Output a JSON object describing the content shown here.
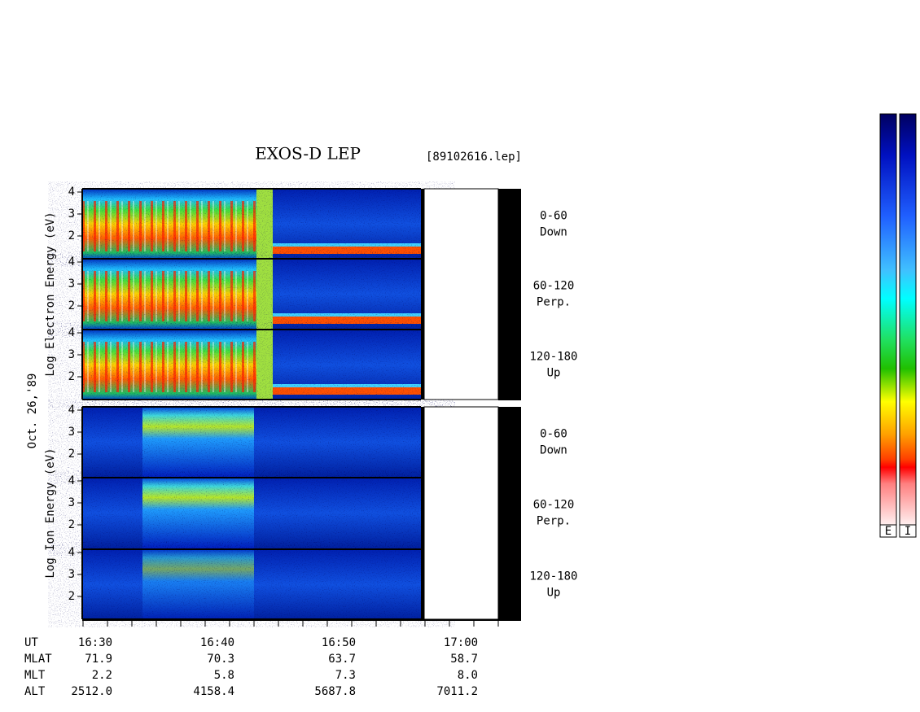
{
  "header": {
    "title": "EXOS-D LEP",
    "file": "[89102616.lep]",
    "date": "Oct. 26,'89"
  },
  "species": [
    {
      "axis_label": "Log  Electron  Energy  (eV)",
      "panels": [
        {
          "angle": "0-60",
          "direction": "Down",
          "yticks": [
            4,
            3,
            2
          ]
        },
        {
          "angle": "60-120",
          "direction": "Perp.",
          "yticks": [
            4,
            3,
            2
          ]
        },
        {
          "angle": "120-180",
          "direction": "Up",
          "yticks": [
            4,
            3,
            2
          ]
        }
      ]
    },
    {
      "axis_label": "Log  Ion  Energy  (eV)",
      "panels": [
        {
          "angle": "0-60",
          "direction": "Down",
          "yticks": [
            4,
            3,
            2
          ]
        },
        {
          "angle": "60-120",
          "direction": "Perp.",
          "yticks": [
            4,
            3,
            2
          ]
        },
        {
          "angle": "120-180",
          "direction": "Up",
          "yticks": [
            4,
            3,
            2
          ]
        }
      ]
    }
  ],
  "time_axis": {
    "rows": [
      {
        "name": "UT",
        "values": [
          "16:30",
          "16:40",
          "16:50",
          "17:00"
        ]
      },
      {
        "name": "MLAT",
        "values": [
          "71.9",
          "70.3",
          "63.7",
          "58.7"
        ]
      },
      {
        "name": "MLT",
        "values": [
          "2.2",
          "5.8",
          "7.3",
          "8.0"
        ]
      },
      {
        "name": "ALT",
        "values": [
          "2512.0",
          "4158.4",
          "5687.8",
          "7011.2"
        ]
      }
    ]
  },
  "colorbars": [
    "E",
    "I"
  ]
}
